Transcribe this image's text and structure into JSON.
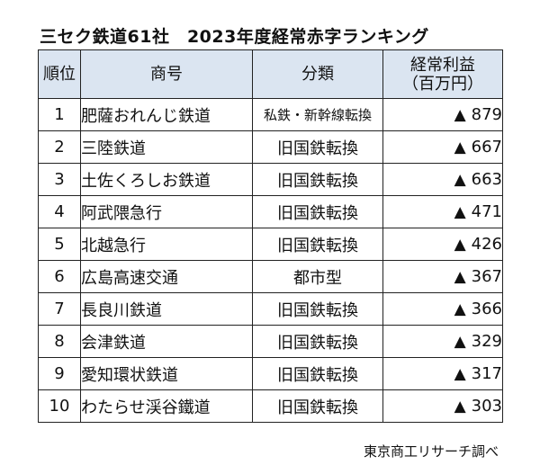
{
  "title": "三セク鉄道61社　2023年度経常赤字ランキング",
  "table": {
    "headers": {
      "rank": "順位",
      "name": "商号",
      "category": "分類",
      "profit": "経常利益",
      "profit_unit": "（百万円）"
    },
    "rows": [
      {
        "rank": "1",
        "name": "肥薩おれんじ鉄道",
        "category": "私鉄・新幹線転換",
        "marker": "▲",
        "value": "879"
      },
      {
        "rank": "2",
        "name": "三陸鉄道",
        "category": "旧国鉄転換",
        "marker": "▲",
        "value": "667"
      },
      {
        "rank": "3",
        "name": "土佐くろしお鉄道",
        "category": "旧国鉄転換",
        "marker": "▲",
        "value": "663"
      },
      {
        "rank": "4",
        "name": "阿武隈急行",
        "category": "旧国鉄転換",
        "marker": "▲",
        "value": "471"
      },
      {
        "rank": "5",
        "name": "北越急行",
        "category": "旧国鉄転換",
        "marker": "▲",
        "value": "426"
      },
      {
        "rank": "6",
        "name": "広島高速交通",
        "category": "都市型",
        "marker": "▲",
        "value": "367"
      },
      {
        "rank": "7",
        "name": "長良川鉄道",
        "category": "旧国鉄転換",
        "marker": "▲",
        "value": "366"
      },
      {
        "rank": "8",
        "name": "会津鉄道",
        "category": "旧国鉄転換",
        "marker": "▲",
        "value": "329"
      },
      {
        "rank": "9",
        "name": "愛知環状鉄道",
        "category": "旧国鉄転換",
        "marker": "▲",
        "value": "317"
      },
      {
        "rank": "10",
        "name": "わたらせ渓谷鐵道",
        "category": "旧国鉄転換",
        "marker": "▲",
        "value": "303"
      }
    ]
  },
  "source": "東京商工リサーチ調べ",
  "colors": {
    "header_bg": "#dbe5f1",
    "border": "#222222"
  }
}
